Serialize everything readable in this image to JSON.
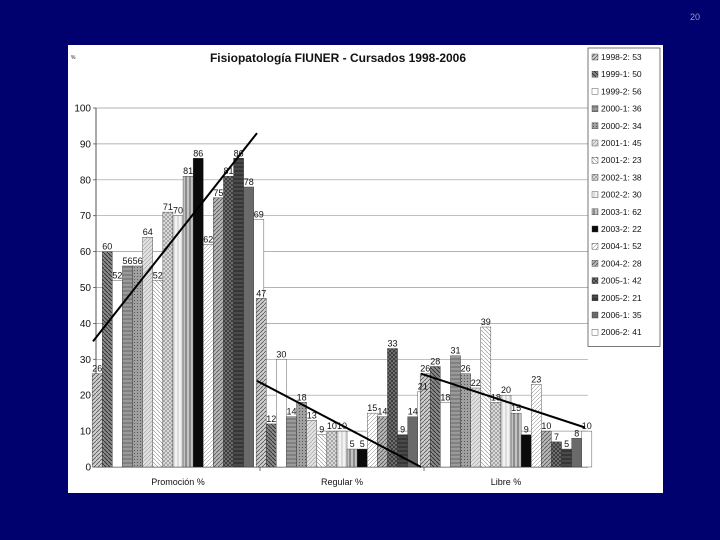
{
  "slide_number": "20",
  "chart_data": {
    "type": "bar",
    "title": "Fisiopatología FIUNER - Cursados 1998-2006",
    "ylabel": "%",
    "ylim": [
      0,
      100
    ],
    "yticks": [
      0,
      10,
      20,
      30,
      40,
      50,
      60,
      70,
      80,
      90,
      100
    ],
    "grid": true,
    "legend_position": "right",
    "categories": [
      "Promoción %",
      "Regular %",
      "Libre %"
    ],
    "series": [
      {
        "name": "1998-2: 53",
        "values": [
          26,
          47,
          26
        ]
      },
      {
        "name": "1999-1: 50",
        "values": [
          60,
          12,
          28
        ]
      },
      {
        "name": "1999-2: 56",
        "values": [
          52,
          30,
          18
        ]
      },
      {
        "name": "2000-1: 36",
        "values": [
          56,
          14,
          31
        ]
      },
      {
        "name": "2000-2: 34",
        "values": [
          56,
          18,
          26
        ]
      },
      {
        "name": "2001-1: 45",
        "values": [
          64,
          13,
          22
        ]
      },
      {
        "name": "2001-2: 23",
        "values": [
          52,
          9,
          39
        ]
      },
      {
        "name": "2002-1: 38",
        "values": [
          71,
          10,
          18
        ]
      },
      {
        "name": "2002-2: 30",
        "values": [
          70,
          10,
          20
        ]
      },
      {
        "name": "2003-1: 62",
        "values": [
          81,
          5,
          15
        ]
      },
      {
        "name": "2003-2: 22",
        "values": [
          86,
          5,
          9
        ]
      },
      {
        "name": "2004-1: 52",
        "values": [
          62,
          15,
          23
        ]
      },
      {
        "name": "2004-2: 28",
        "values": [
          75,
          14,
          10
        ]
      },
      {
        "name": "2005-1: 42",
        "values": [
          81,
          33,
          7
        ]
      },
      {
        "name": "2005-2: 21",
        "values": [
          86,
          9,
          5
        ]
      },
      {
        "name": "2006-1: 35",
        "values": [
          78,
          14,
          8
        ]
      },
      {
        "name": "2006-2: 41",
        "values": [
          69,
          21,
          10
        ]
      }
    ],
    "annotations": [
      {
        "type": "trend-line",
        "category": "Promoción %",
        "from": 35,
        "to": 93
      },
      {
        "type": "trend-line",
        "category": "Regular %",
        "from": 24,
        "to": 0
      },
      {
        "type": "trend-line",
        "category": "Libre %",
        "from": 26,
        "to": 11
      }
    ]
  }
}
